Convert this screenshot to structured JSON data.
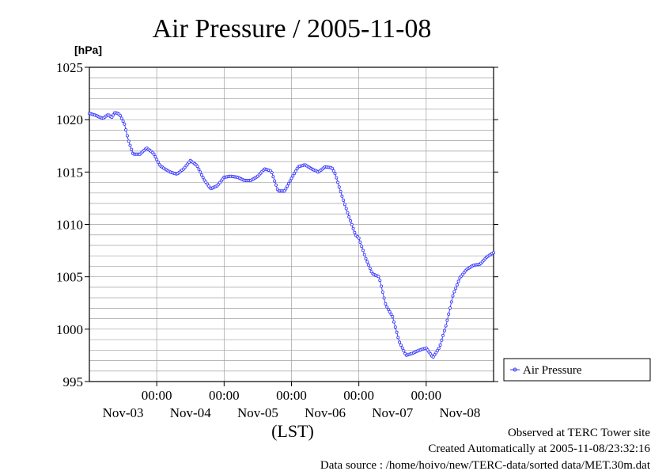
{
  "chart_data": {
    "type": "line",
    "title": "Air Pressure / 2005-11-08",
    "ylabel": "[hPa]",
    "xlabel": "(LST)",
    "ylim": [
      995,
      1025
    ],
    "yticks": [
      995,
      1000,
      1005,
      1010,
      1015,
      1020,
      1025
    ],
    "x_range_days": [
      0,
      6
    ],
    "x_tick_time_label": "00:00",
    "x_day_labels": [
      "Nov-03",
      "Nov-04",
      "Nov-05",
      "Nov-06",
      "Nov-07",
      "Nov-08"
    ],
    "grid": true,
    "legend_position": "right",
    "series": [
      {
        "name": "Air Pressure",
        "color": "#3333ff",
        "marker": "circle",
        "x": [
          0.0,
          0.1,
          0.2,
          0.28,
          0.33,
          0.38,
          0.45,
          0.52,
          0.58,
          0.65,
          0.75,
          0.85,
          0.95,
          1.05,
          1.12,
          1.2,
          1.3,
          1.4,
          1.5,
          1.6,
          1.7,
          1.8,
          1.9,
          2.0,
          2.1,
          2.2,
          2.3,
          2.4,
          2.5,
          2.6,
          2.7,
          2.8,
          2.9,
          3.0,
          3.1,
          3.2,
          3.3,
          3.4,
          3.5,
          3.6,
          3.65,
          3.75,
          3.85,
          3.95,
          4.0,
          4.1,
          4.2,
          4.3,
          4.4,
          4.5,
          4.6,
          4.7,
          4.8,
          4.9,
          5.0,
          5.1,
          5.2,
          5.3,
          5.4,
          5.5,
          5.6,
          5.7,
          5.8,
          5.9,
          6.0
        ],
        "values": [
          1020.6,
          1020.4,
          1020.1,
          1020.5,
          1020.2,
          1020.7,
          1020.5,
          1019.6,
          1018.0,
          1016.7,
          1016.7,
          1017.3,
          1016.8,
          1015.6,
          1015.3,
          1015.0,
          1014.8,
          1015.3,
          1016.1,
          1015.6,
          1014.3,
          1013.4,
          1013.7,
          1014.5,
          1014.6,
          1014.5,
          1014.2,
          1014.2,
          1014.6,
          1015.3,
          1015.1,
          1013.2,
          1013.2,
          1014.4,
          1015.5,
          1015.7,
          1015.3,
          1015.0,
          1015.5,
          1015.4,
          1014.8,
          1012.7,
          1010.8,
          1009.0,
          1008.7,
          1006.8,
          1005.3,
          1005.0,
          1002.3,
          1001.2,
          998.8,
          997.5,
          997.7,
          998.0,
          998.2,
          997.3,
          998.3,
          1000.5,
          1003.3,
          1004.9,
          1005.7,
          1006.1,
          1006.2,
          1006.9,
          1007.3
        ]
      }
    ]
  },
  "footer": {
    "line1": "Observed at TERC Tower site",
    "line2": "Created Automatically at 2005-11-08/23:32:16",
    "line3": "Data source : /home/hoivo/new/TERC-data/sorted  data/MET.30m.dat"
  }
}
